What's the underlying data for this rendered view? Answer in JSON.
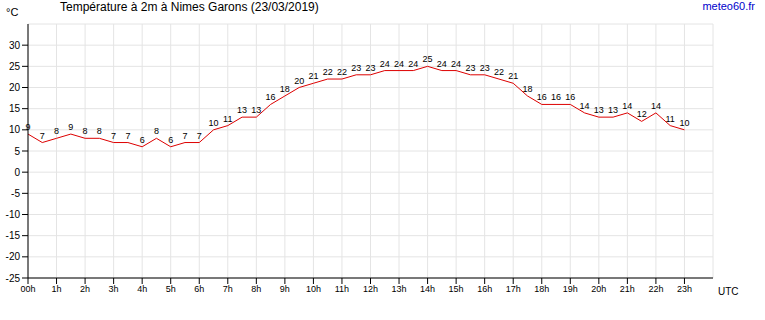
{
  "chart_data": {
    "type": "line",
    "title": "Température à 2m à Nimes Garons (23/03/2019)",
    "source": "meteo60.fr",
    "y_label": "°C",
    "x_label": "UTC",
    "x": [
      0,
      0.5,
      1,
      1.5,
      2,
      2.5,
      3,
      3.5,
      4,
      4.5,
      5,
      5.5,
      6,
      6.5,
      7,
      7.5,
      8,
      8.5,
      9,
      9.5,
      10,
      10.5,
      11,
      11.5,
      12,
      12.5,
      13,
      13.5,
      14,
      14.5,
      15,
      15.5,
      16,
      16.5,
      17,
      17.5,
      18,
      18.5,
      19,
      19.5,
      20,
      20.5,
      21,
      21.5,
      22,
      22.5,
      23
    ],
    "values": [
      9,
      7,
      8,
      9,
      8,
      8,
      7,
      7,
      6,
      8,
      6,
      7,
      7,
      10,
      11,
      13,
      13,
      16,
      18,
      20,
      21,
      22,
      22,
      23,
      23,
      24,
      24,
      24,
      25,
      24,
      24,
      23,
      23,
      22,
      21,
      18,
      16,
      16,
      16,
      14,
      13,
      13,
      14,
      12,
      14,
      11,
      10
    ],
    "color": "#dd0000",
    "xlim": [
      0,
      24
    ],
    "xticks": [
      {
        "value": 0,
        "label": "00h"
      },
      {
        "value": 1,
        "label": "1h"
      },
      {
        "value": 2,
        "label": "2h"
      },
      {
        "value": 3,
        "label": "3h"
      },
      {
        "value": 4,
        "label": "4h"
      },
      {
        "value": 5,
        "label": "5h"
      },
      {
        "value": 6,
        "label": "6h"
      },
      {
        "value": 7,
        "label": "7h"
      },
      {
        "value": 8,
        "label": "8h"
      },
      {
        "value": 9,
        "label": "9h"
      },
      {
        "value": 10,
        "label": "10h"
      },
      {
        "value": 11,
        "label": "11h"
      },
      {
        "value": 12,
        "label": "12h"
      },
      {
        "value": 13,
        "label": "13h"
      },
      {
        "value": 14,
        "label": "14h"
      },
      {
        "value": 15,
        "label": "15h"
      },
      {
        "value": 16,
        "label": "16h"
      },
      {
        "value": 17,
        "label": "17h"
      },
      {
        "value": 18,
        "label": "18h"
      },
      {
        "value": 19,
        "label": "19h"
      },
      {
        "value": 20,
        "label": "20h"
      },
      {
        "value": 21,
        "label": "21h"
      },
      {
        "value": 22,
        "label": "22h"
      },
      {
        "value": 23,
        "label": "23h"
      }
    ],
    "ylim": [
      -25,
      35
    ],
    "yticks": [
      -25,
      -20,
      -15,
      -10,
      -5,
      0,
      5,
      10,
      15,
      20,
      25,
      30
    ],
    "grid": true,
    "data_labels": true
  }
}
